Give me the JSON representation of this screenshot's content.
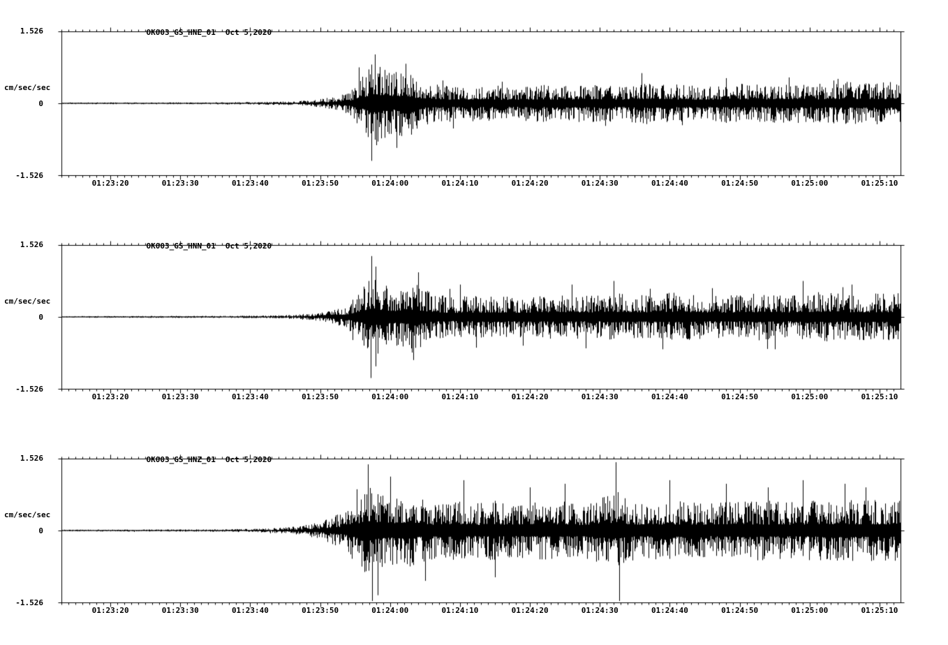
{
  "page": {
    "background": "#ffffff",
    "trace_color": "#000000",
    "station": "OK003",
    "date": "Oct 5,2020"
  },
  "chart_data": [
    {
      "type": "line",
      "title": "OK003_GS_HNE_01",
      "date": "Oct 5,2020",
      "ylabel": "cm/sec/sec",
      "ytick_labels": [
        "1.526",
        "0",
        "-1.526"
      ],
      "ylim": [
        -1.526,
        1.526
      ],
      "x_tick_labels": [
        "01:23:20",
        "01:23:30",
        "01:23:40",
        "01:23:50",
        "01:24:00",
        "01:24:10",
        "01:24:20",
        "01:24:30",
        "01:24:40",
        "01:24:50",
        "01:25:00",
        "01:25:10"
      ],
      "x_first_tick_s": 7,
      "x_tick_interval_s": 10,
      "x_minor_tick_s": 1,
      "duration_s": 120,
      "seed": 11,
      "envelope": [
        [
          0,
          0.012
        ],
        [
          20,
          0.014
        ],
        [
          28,
          0.018
        ],
        [
          33,
          0.028
        ],
        [
          36,
          0.045
        ],
        [
          39,
          0.09
        ],
        [
          41,
          0.16
        ],
        [
          43,
          0.38
        ],
        [
          44.5,
          0.62
        ],
        [
          46,
          0.52
        ],
        [
          47.5,
          0.42
        ],
        [
          49,
          0.55
        ],
        [
          50.5,
          0.38
        ],
        [
          52,
          0.3
        ],
        [
          54,
          0.26
        ],
        [
          57,
          0.24
        ],
        [
          60,
          0.26
        ],
        [
          64,
          0.24
        ],
        [
          68,
          0.26
        ],
        [
          72,
          0.25
        ],
        [
          76,
          0.27
        ],
        [
          80,
          0.25
        ],
        [
          84,
          0.3
        ],
        [
          88,
          0.26
        ],
        [
          92,
          0.25
        ],
        [
          96,
          0.28
        ],
        [
          100,
          0.26
        ],
        [
          104,
          0.28
        ],
        [
          108,
          0.27
        ],
        [
          112,
          0.3
        ],
        [
          115,
          0.29
        ],
        [
          120,
          0.3
        ]
      ],
      "spikes": [
        [
          42.5,
          0.5
        ],
        [
          44.3,
          -0.8
        ],
        [
          44.8,
          0.68
        ],
        [
          47.9,
          -0.62
        ],
        [
          49.2,
          0.55
        ],
        [
          56,
          -0.35
        ],
        [
          63,
          0.3
        ],
        [
          83,
          0.42
        ],
        [
          95,
          0.35
        ],
        [
          104,
          0.36
        ],
        [
          111,
          0.34
        ]
      ]
    },
    {
      "type": "line",
      "title": "OK003_GS_HNN_01",
      "date": "Oct 5,2020",
      "ylabel": "cm/sec/sec",
      "ytick_labels": [
        "1.526",
        "0",
        "-1.526"
      ],
      "ylim": [
        -1.526,
        1.526
      ],
      "x_tick_labels": [
        "01:23:20",
        "01:23:30",
        "01:23:40",
        "01:23:50",
        "01:24:00",
        "01:24:10",
        "01:24:20",
        "01:24:30",
        "01:24:40",
        "01:24:50",
        "01:25:00",
        "01:25:10"
      ],
      "x_first_tick_s": 7,
      "x_tick_interval_s": 10,
      "x_minor_tick_s": 1,
      "duration_s": 120,
      "seed": 22,
      "envelope": [
        [
          0,
          0.012
        ],
        [
          25,
          0.015
        ],
        [
          32,
          0.025
        ],
        [
          36,
          0.05
        ],
        [
          39,
          0.1
        ],
        [
          41,
          0.18
        ],
        [
          43,
          0.4
        ],
        [
          44.5,
          0.6
        ],
        [
          46,
          0.45
        ],
        [
          48,
          0.4
        ],
        [
          50,
          0.5
        ],
        [
          51.5,
          0.42
        ],
        [
          53,
          0.32
        ],
        [
          56,
          0.28
        ],
        [
          60,
          0.3
        ],
        [
          64,
          0.28
        ],
        [
          68,
          0.3
        ],
        [
          72,
          0.32
        ],
        [
          76,
          0.3
        ],
        [
          80,
          0.33
        ],
        [
          84,
          0.3
        ],
        [
          88,
          0.35
        ],
        [
          92,
          0.3
        ],
        [
          96,
          0.3
        ],
        [
          100,
          0.33
        ],
        [
          104,
          0.3
        ],
        [
          108,
          0.35
        ],
        [
          112,
          0.32
        ],
        [
          120,
          0.33
        ]
      ],
      "spikes": [
        [
          44.2,
          -0.85
        ],
        [
          44.9,
          0.7
        ],
        [
          50.3,
          -0.6
        ],
        [
          51,
          0.62
        ],
        [
          57,
          0.45
        ],
        [
          66,
          -0.4
        ],
        [
          73,
          0.45
        ],
        [
          79,
          0.5
        ],
        [
          86,
          -0.45
        ],
        [
          93,
          0.4
        ],
        [
          102,
          -0.45
        ],
        [
          106,
          0.5
        ],
        [
          113,
          0.45
        ]
      ]
    },
    {
      "type": "line",
      "title": "OK003_GS_HNZ_01",
      "date": "Oct 5,2020",
      "ylabel": "cm/sec/sec",
      "ytick_labels": [
        "1.526",
        "0",
        "-1.526"
      ],
      "ylim": [
        -1.526,
        1.526
      ],
      "x_tick_labels": [
        "01:23:20",
        "01:23:30",
        "01:23:40",
        "01:23:50",
        "01:24:00",
        "01:24:10",
        "01:24:20",
        "01:24:30",
        "01:24:40",
        "01:24:50",
        "01:25:00",
        "01:25:10"
      ],
      "x_first_tick_s": 7,
      "x_tick_interval_s": 10,
      "x_minor_tick_s": 1,
      "duration_s": 120,
      "seed": 33,
      "envelope": [
        [
          0,
          0.012
        ],
        [
          22,
          0.016
        ],
        [
          30,
          0.03
        ],
        [
          34,
          0.06
        ],
        [
          37,
          0.12
        ],
        [
          40,
          0.25
        ],
        [
          42,
          0.45
        ],
        [
          44,
          0.65
        ],
        [
          45.5,
          0.55
        ],
        [
          47,
          0.48
        ],
        [
          49,
          0.55
        ],
        [
          51,
          0.45
        ],
        [
          53,
          0.4
        ],
        [
          56,
          0.42
        ],
        [
          59,
          0.38
        ],
        [
          62,
          0.42
        ],
        [
          65,
          0.38
        ],
        [
          68,
          0.4
        ],
        [
          71,
          0.42
        ],
        [
          74,
          0.38
        ],
        [
          77,
          0.45
        ],
        [
          79.5,
          0.55
        ],
        [
          81,
          0.42
        ],
        [
          84,
          0.4
        ],
        [
          88,
          0.42
        ],
        [
          92,
          0.38
        ],
        [
          96,
          0.4
        ],
        [
          100,
          0.42
        ],
        [
          104,
          0.4
        ],
        [
          108,
          0.42
        ],
        [
          112,
          0.44
        ],
        [
          120,
          0.42
        ]
      ],
      "spikes": [
        [
          43.8,
          0.92
        ],
        [
          44.4,
          -0.98
        ],
        [
          45.2,
          -0.9
        ],
        [
          47,
          0.75
        ],
        [
          52,
          -0.7
        ],
        [
          57.5,
          0.7
        ],
        [
          62,
          -0.65
        ],
        [
          67,
          0.6
        ],
        [
          72,
          0.65
        ],
        [
          79.3,
          0.95
        ],
        [
          79.8,
          -0.98
        ],
        [
          87,
          0.7
        ],
        [
          95,
          0.65
        ],
        [
          101,
          0.6
        ],
        [
          106,
          0.7
        ],
        [
          112,
          0.65
        ],
        [
          115,
          0.6
        ]
      ]
    }
  ]
}
